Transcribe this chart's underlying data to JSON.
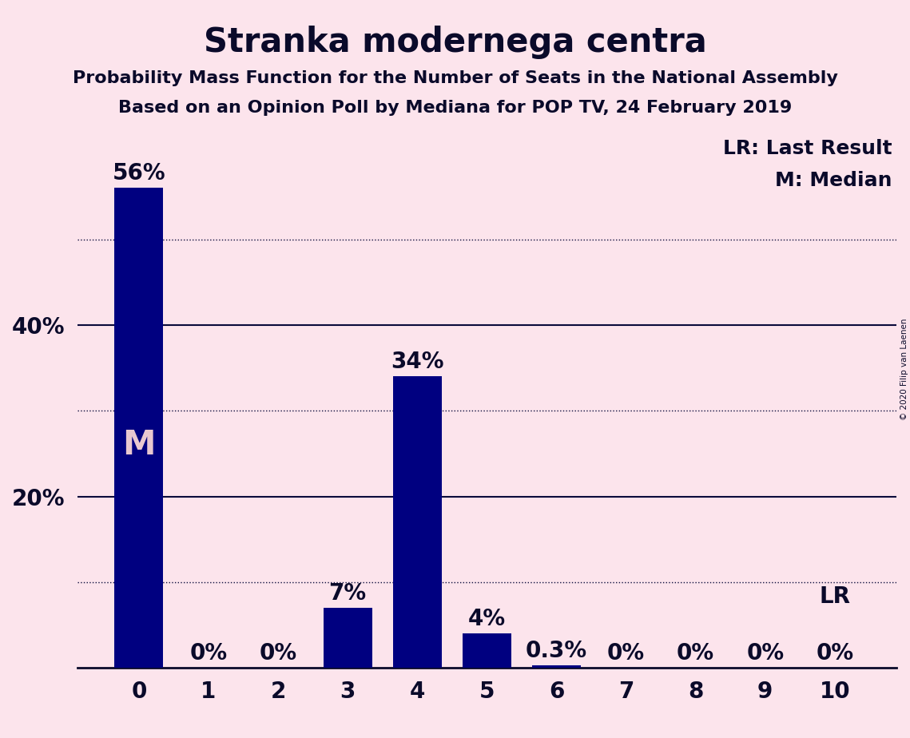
{
  "title": "Stranka modernega centra",
  "subtitle1": "Probability Mass Function for the Number of Seats in the National Assembly",
  "subtitle2": "Based on an Opinion Poll by Mediana for POP TV, 24 February 2019",
  "copyright": "© 2020 Filip van Laenen",
  "seats": [
    0,
    1,
    2,
    3,
    4,
    5,
    6,
    7,
    8,
    9,
    10
  ],
  "probabilities": [
    0.56,
    0.0,
    0.0,
    0.07,
    0.34,
    0.04,
    0.003,
    0.0,
    0.0,
    0.0,
    0.0
  ],
  "bar_color": "#000080",
  "background_color": "#fce4ec",
  "median_seat": 0,
  "last_result_seat": 10,
  "label_lr": "LR: Last Result",
  "label_m": "M: Median",
  "bar_label_m": "M",
  "bar_label_lr": "LR",
  "bar_labels": [
    "56%",
    "0%",
    "0%",
    "7%",
    "34%",
    "4%",
    "0.3%",
    "0%",
    "0%",
    "0%",
    "0%"
  ],
  "ylim": [
    0,
    0.62
  ],
  "yticks": [
    0.2,
    0.4
  ],
  "ytick_labels": [
    "20%",
    "40%"
  ],
  "title_fontsize": 30,
  "subtitle_fontsize": 16,
  "tick_fontsize": 20,
  "bar_label_fontsize": 20,
  "annotation_fontsize": 20,
  "legend_fontsize": 18,
  "grid_color": "#0a0a3a",
  "dotted_yticks": [
    0.1,
    0.3,
    0.5
  ],
  "solid_yticks": [
    0.2,
    0.4
  ]
}
